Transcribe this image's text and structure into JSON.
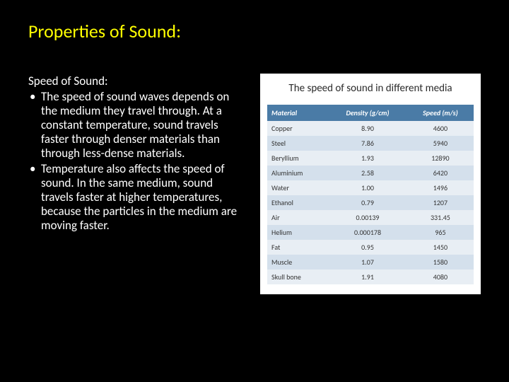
{
  "title": "Properties of Sound:",
  "subhead": "Speed of Sound:",
  "bullets": [
    "The speed of sound waves depends on the medium they travel through. At a constant temperature, sound travels faster through denser materials than through less-dense materials.",
    "Temperature also affects the speed of sound. In the same medium, sound travels faster at higher temperatures, because the particles in the medium are moving faster."
  ],
  "table": {
    "title": "The speed of sound in different media",
    "columns": [
      "Material",
      "Density (g/cm)",
      "Speed (m/s)"
    ],
    "rows": [
      [
        "Copper",
        "8.90",
        "4600"
      ],
      [
        "Steel",
        "7.86",
        "5940"
      ],
      [
        "Beryllium",
        "1.93",
        "12890"
      ],
      [
        "Aluminium",
        "2.58",
        "6420"
      ],
      [
        "Water",
        "1.00",
        "1496"
      ],
      [
        "Ethanol",
        "0.79",
        "1207"
      ],
      [
        "Air",
        "0.00139",
        "331.45"
      ],
      [
        "Helium",
        "0.000178",
        "965"
      ],
      [
        "Fat",
        "0.95",
        "1450"
      ],
      [
        "Muscle",
        "1.07",
        "1580"
      ],
      [
        "Skull bone",
        "1.91",
        "4080"
      ]
    ],
    "header_bg": "#4a7ba6",
    "header_fg": "#ffffff",
    "row_odd_bg": "#e8eef4",
    "row_even_bg": "#d4e0ec",
    "cell_fg": "#333333"
  },
  "colors": {
    "slide_bg": "#000000",
    "title_color": "#ffff00",
    "body_text": "#ffffff",
    "panel_bg": "#ffffff"
  }
}
